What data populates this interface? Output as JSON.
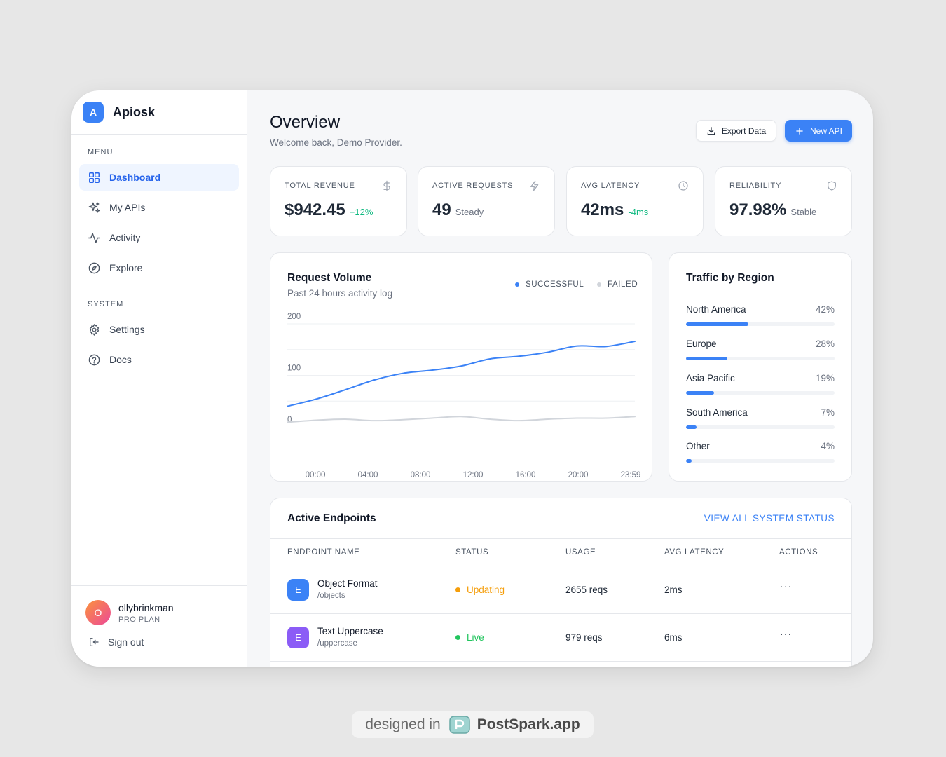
{
  "brand": {
    "logo_letter": "A",
    "name": "Apiosk"
  },
  "sidebar": {
    "menu_label": "MENU",
    "menu_items": [
      {
        "label": "Dashboard",
        "icon": "grid-icon",
        "active": true
      },
      {
        "label": "My APIs",
        "icon": "sparkles-icon",
        "active": false
      },
      {
        "label": "Activity",
        "icon": "activity-icon",
        "active": false
      },
      {
        "label": "Explore",
        "icon": "compass-icon",
        "active": false
      }
    ],
    "system_label": "SYSTEM",
    "system_items": [
      {
        "label": "Settings",
        "icon": "gear-icon"
      },
      {
        "label": "Docs",
        "icon": "help-circle-icon"
      }
    ],
    "user": {
      "initial": "O",
      "name": "ollybrinkman",
      "plan": "PRO PLAN"
    },
    "signout_label": "Sign out"
  },
  "header": {
    "title": "Overview",
    "subtitle": "Welcome back, Demo Provider.",
    "export_label": "Export Data",
    "new_label": "New API"
  },
  "stats": [
    {
      "label": "TOTAL REVENUE",
      "value": "$942.45",
      "delta": "+12%",
      "delta_tone": "pos",
      "icon": "dollar-icon"
    },
    {
      "label": "ACTIVE REQUESTS",
      "value": "49",
      "delta": "Steady",
      "delta_tone": "neu",
      "icon": "zap-icon"
    },
    {
      "label": "AVG LATENCY",
      "value": "42ms",
      "delta": "-4ms",
      "delta_tone": "pos",
      "icon": "clock-icon"
    },
    {
      "label": "RELIABILITY",
      "value": "97.98%",
      "delta": "Stable",
      "delta_tone": "neu",
      "icon": "shield-icon"
    }
  ],
  "chart": {
    "title": "Request Volume",
    "subtitle": "Past 24 hours activity log",
    "legend": [
      {
        "label": "SUCCESSFUL",
        "color": "#3b82f6"
      },
      {
        "label": "FAILED",
        "color": "#d1d5db"
      }
    ]
  },
  "chart_data": {
    "type": "line",
    "x": [
      "00:00",
      "02:00",
      "04:00",
      "06:00",
      "08:00",
      "10:00",
      "12:00",
      "14:00",
      "16:00",
      "18:00",
      "20:00",
      "22:00",
      "23:59"
    ],
    "x_tick_labels": [
      "00:00",
      "04:00",
      "08:00",
      "12:00",
      "16:00",
      "20:00",
      "23:59"
    ],
    "series": [
      {
        "name": "SUCCESSFUL",
        "color": "#3b82f6",
        "values": [
          40,
          54,
          72,
          91,
          104,
          110,
          118,
          132,
          137,
          145,
          157,
          156,
          166
        ]
      },
      {
        "name": "FAILED",
        "color": "#d1d5db",
        "values": [
          9,
          13,
          15,
          12,
          14,
          17,
          20,
          15,
          12,
          15,
          17,
          17,
          20
        ]
      }
    ],
    "y_ticks": [
      0,
      100,
      200
    ],
    "ylim": [
      0,
      200
    ],
    "grid": true,
    "legend_position": "top-right"
  },
  "regions": {
    "title": "Traffic by Region",
    "items": [
      {
        "name": "North America",
        "pct_label": "42%",
        "value": 42
      },
      {
        "name": "Europe",
        "pct_label": "28%",
        "value": 28
      },
      {
        "name": "Asia Pacific",
        "pct_label": "19%",
        "value": 19
      },
      {
        "name": "South America",
        "pct_label": "7%",
        "value": 7
      },
      {
        "name": "Other",
        "pct_label": "4%",
        "value": 4
      }
    ]
  },
  "endpoints": {
    "title": "Active Endpoints",
    "view_all": "VIEW ALL SYSTEM STATUS",
    "columns": [
      "ENDPOINT NAME",
      "STATUS",
      "USAGE",
      "AVG LATENCY",
      "ACTIONS"
    ],
    "rows": [
      {
        "icon_letter": "E",
        "icon_color": "#3b82f6",
        "name": "Object Format",
        "path": "/objects",
        "status": "Updating",
        "status_color": "#f59e0b",
        "usage": "2655 reqs",
        "latency": "2ms",
        "actions": "···"
      },
      {
        "icon_letter": "E",
        "icon_color": "#8b5cf6",
        "name": "Text Uppercase",
        "path": "/uppercase",
        "status": "Live",
        "status_color": "#22c55e",
        "usage": "979 reqs",
        "latency": "6ms",
        "actions": "···"
      }
    ]
  },
  "watermark": {
    "prefix": "designed in",
    "brand": "PostSpark.app"
  }
}
